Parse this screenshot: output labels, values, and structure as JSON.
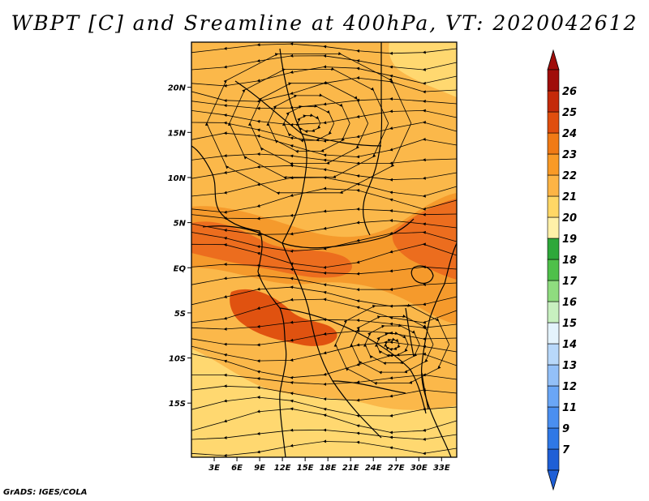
{
  "title": "WBPT [C] and Sreamline at 400hPa, VT: 2020042612",
  "credit": "GrADS: IGES/COLA",
  "map": {
    "lat_range": [
      -21,
      25
    ],
    "lon_range": [
      0,
      35
    ],
    "lat_labels": [
      "20N",
      "15N",
      "10N",
      "5N",
      "EQ",
      "5S",
      "10S",
      "15S"
    ],
    "lon_labels": [
      "3E",
      "6E",
      "9E",
      "12E",
      "15E",
      "18E",
      "21E",
      "24E",
      "27E",
      "30E",
      "33E"
    ],
    "vortex_centers": [
      {
        "name": "anticyclone-north",
        "lon": 15.5,
        "lat": 16
      },
      {
        "name": "cyclone-south",
        "lon": 26.5,
        "lat": -8.5
      }
    ]
  },
  "colorbar": {
    "labels": [
      "7",
      "9",
      "11",
      "12",
      "13",
      "14",
      "15",
      "16",
      "17",
      "18",
      "19",
      "20",
      "21",
      "22",
      "23",
      "24",
      "25",
      "26"
    ],
    "colors": [
      "#1f5fd6",
      "#2f78e6",
      "#4a8ff0",
      "#6aa6f6",
      "#93c0f8",
      "#b8d8fa",
      "#e4f3fc",
      "#c8f0c0",
      "#8fdc7f",
      "#4fc04a",
      "#2ea83a",
      "#fff0a8",
      "#ffd766",
      "#fdb445",
      "#f99a26",
      "#f07a15",
      "#e04e0e",
      "#c42a0a",
      "#a00d0a"
    ],
    "end_top": "#a00d0a",
    "end_bottom": "#1f5fd6"
  },
  "field_colors": {
    "light": "#ffd870",
    "mid": "#fbb84a",
    "deep": "#f59a2c",
    "hot": "#ec6d1e",
    "hotter": "#e05210"
  }
}
